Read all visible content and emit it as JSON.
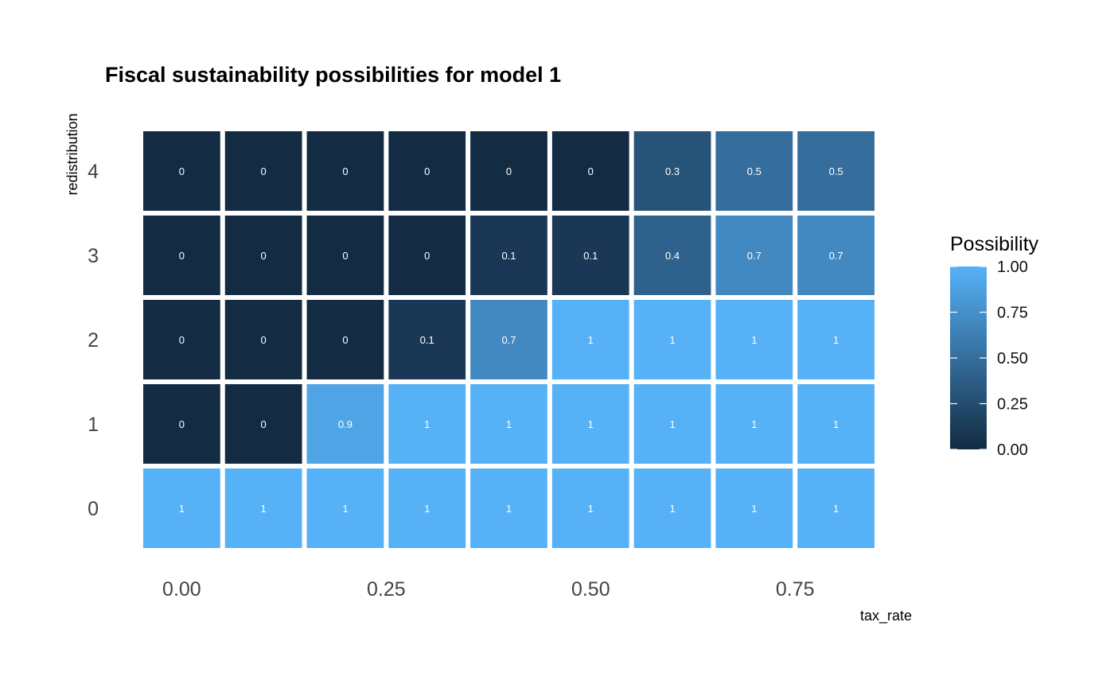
{
  "chart_data": {
    "type": "heatmap",
    "title": "Fiscal sustainability possibilities for model 1",
    "xlabel": "tax_rate",
    "ylabel": "redistribution",
    "x": [
      0.0,
      0.1,
      0.2,
      0.3,
      0.4,
      0.5,
      0.6,
      0.7,
      0.8
    ],
    "x_ticks": [
      0.0,
      0.25,
      0.5,
      0.75
    ],
    "x_tick_labels": [
      "0.00",
      "0.25",
      "0.50",
      "0.75"
    ],
    "y": [
      0,
      1,
      2,
      3,
      4
    ],
    "y_tick_labels": [
      "0",
      "1",
      "2",
      "3",
      "4"
    ],
    "values": [
      [
        1,
        1,
        1,
        1,
        1,
        1,
        1,
        1,
        1
      ],
      [
        0,
        0,
        0.9,
        1,
        1,
        1,
        1,
        1,
        1
      ],
      [
        0,
        0,
        0,
        0.1,
        0.7,
        1,
        1,
        1,
        1
      ],
      [
        0,
        0,
        0,
        0,
        0.1,
        0.1,
        0.4,
        0.7,
        0.7
      ],
      [
        0,
        0,
        0,
        0,
        0,
        0,
        0.3,
        0.5,
        0.5
      ]
    ],
    "cell_labels": [
      [
        "1",
        "1",
        "1",
        "1",
        "1",
        "1",
        "1",
        "1",
        "1"
      ],
      [
        "0",
        "0",
        "0.9",
        "1",
        "1",
        "1",
        "1",
        "1",
        "1"
      ],
      [
        "0",
        "0",
        "0",
        "0.1",
        "0.7",
        "1",
        "1",
        "1",
        "1"
      ],
      [
        "0",
        "0",
        "0",
        "0",
        "0.1",
        "0.1",
        "0.4",
        "0.7",
        "0.7"
      ],
      [
        "0",
        "0",
        "0",
        "0",
        "0",
        "0",
        "0.3",
        "0.5",
        "0.5"
      ]
    ],
    "legend": {
      "title": "Possibility",
      "ticks": [
        0.0,
        0.25,
        0.5,
        0.75,
        1.0
      ],
      "tick_labels": [
        "0.00",
        "0.25",
        "0.50",
        "0.75",
        "1.00"
      ],
      "position": "right"
    },
    "color_low": "#132b43",
    "color_high": "#56b1f7"
  }
}
